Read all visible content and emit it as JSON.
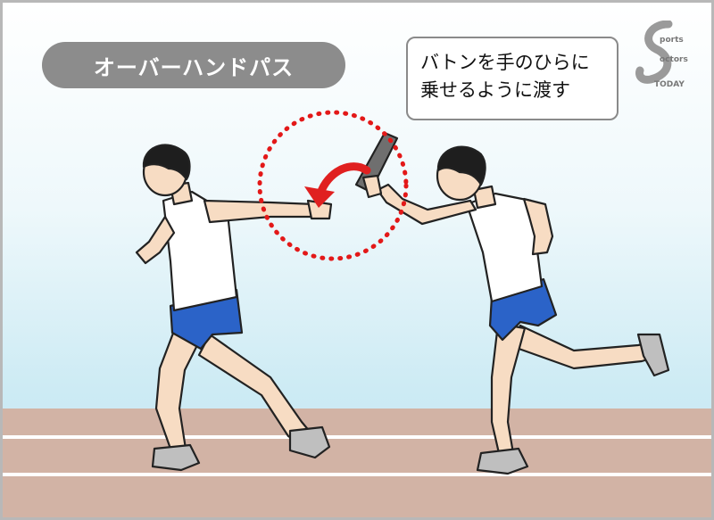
{
  "title": "オーバーハンドパス",
  "callout": {
    "line1": "バトンを手のひらに",
    "line2": "乗せるように渡す"
  },
  "logo": {
    "name": "sports-logo",
    "text": "Sports Doctors Today"
  },
  "colors": {
    "title_bg": "#8c8c8c",
    "target_circle": "#e31818",
    "arrow": "#e02020",
    "shorts": "#2b63c8",
    "skin": "#f7dcc3",
    "track": "#d2b3a5",
    "baton": "#6f6f6f"
  },
  "icons": {
    "target": "dotted-circle-icon",
    "arrow": "curved-arrow-icon"
  }
}
